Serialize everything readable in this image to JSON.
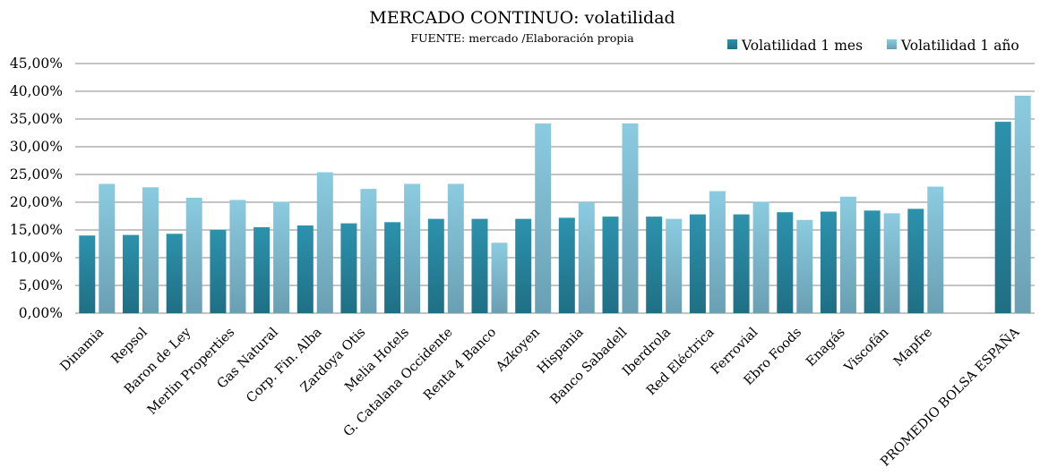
{
  "chart_data": {
    "type": "bar",
    "title": "MERCADO CONTINUO:  volatilidad",
    "subtitle": "FUENTE: mercado /Elaboración propia",
    "xlabel": "",
    "ylabel": "",
    "ylim": [
      0,
      45
    ],
    "yticks": [
      "0,00%",
      "5,00%",
      "10,00%",
      "15,00%",
      "20,00%",
      "25,00%",
      "30,00%",
      "35,00%",
      "40,00%",
      "45,00%"
    ],
    "grid": true,
    "legend_position": "top-right",
    "categories": [
      "Dinamia",
      "Repsol",
      "Baron de Ley",
      "Merlin Properties",
      "Gas Natural",
      "Corp. Fin. Alba",
      "Zardoya Otis",
      "Melia Hotels",
      "G. Catalana Occidente",
      "Renta 4 Banco",
      "Azkoyen",
      "Hispania",
      "Banco Sabadell",
      "Iberdrola",
      "Red Eléctrica",
      "Ferrovial",
      "Ebro Foods",
      "Enagás",
      "Viscofán",
      "Mapfre",
      "",
      "PROMEDIO BOLSA ESPAÑA"
    ],
    "series": [
      {
        "name": "Volatilidad 1 mes",
        "color": "#2e8fa8",
        "values": [
          14.0,
          14.1,
          14.3,
          15.0,
          15.5,
          15.8,
          16.2,
          16.4,
          17.0,
          17.0,
          17.0,
          17.2,
          17.4,
          17.4,
          17.8,
          17.8,
          18.2,
          18.3,
          18.5,
          18.8,
          null,
          34.5
        ]
      },
      {
        "name": "Volatilidad 1 año",
        "color": "#85c6da",
        "values": [
          23.3,
          22.7,
          20.8,
          20.4,
          20.1,
          25.4,
          22.4,
          23.3,
          23.3,
          12.7,
          34.2,
          20.0,
          34.2,
          17.0,
          22.0,
          20.1,
          16.8,
          21.0,
          18.0,
          22.8,
          null,
          39.2
        ]
      }
    ]
  }
}
